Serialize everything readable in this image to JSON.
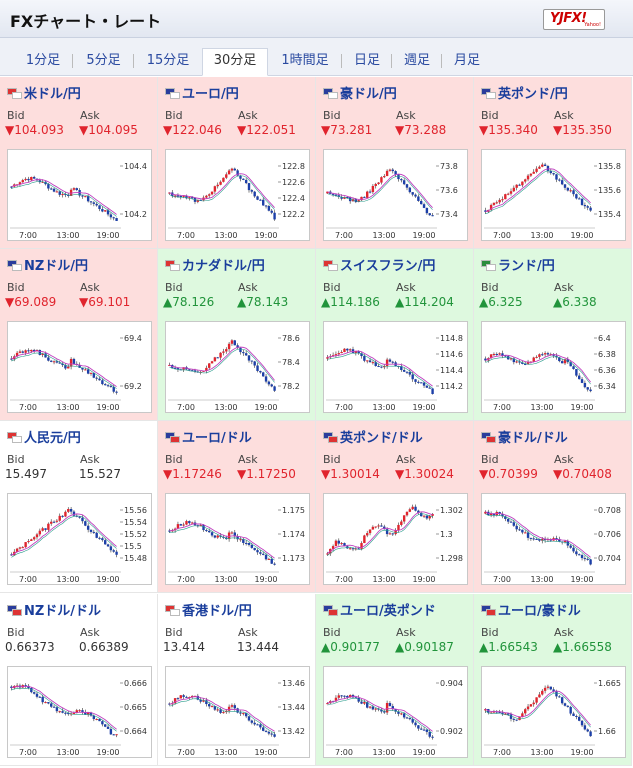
{
  "header": {
    "title": "FXチャート・レート",
    "logo_text": "YJFX!",
    "logo_sub": "Yahoo!"
  },
  "tabs": [
    {
      "label": "1分足",
      "active": false
    },
    {
      "label": "5分足",
      "active": false
    },
    {
      "label": "15分足",
      "active": false
    },
    {
      "label": "30分足",
      "active": true
    },
    {
      "label": "1時間足",
      "active": false
    },
    {
      "label": "日足",
      "active": false
    },
    {
      "label": "週足",
      "active": false
    },
    {
      "label": "月足",
      "active": false
    }
  ],
  "labels": {
    "bid": "Bid",
    "ask": "Ask"
  },
  "colors": {
    "down_bg": "#fddedd",
    "up_bg": "#def9df",
    "down_text": "#e0242d",
    "up_text": "#21943b",
    "link": "#1a3e9c"
  },
  "x_ticks": [
    "7:00",
    "13:00",
    "19:00"
  ],
  "pairs": [
    {
      "name": "米ドル/円",
      "trend": "down",
      "bid": "▼104.093",
      "ask": "▼104.095",
      "ticks": [
        "104.4",
        "104.2"
      ],
      "flag_colors": [
        "#d33",
        "#fff"
      ],
      "path": "flat_then_down"
    },
    {
      "name": "ユーロ/円",
      "trend": "down",
      "bid": "▼122.046",
      "ask": "▼122.051",
      "ticks": [
        "122.8",
        "122.6",
        "122.4",
        "122.2"
      ],
      "flag_colors": [
        "#2a3d9c",
        "#fff"
      ],
      "path": "dip_rise_drop"
    },
    {
      "name": "豪ドル/円",
      "trend": "down",
      "bid": "▼73.281",
      "ask": "▼73.288",
      "ticks": [
        "73.8",
        "73.6",
        "73.4"
      ],
      "flag_colors": [
        "#2a3d9c",
        "#fff"
      ],
      "path": "dip_rise_drop"
    },
    {
      "name": "英ポンド/円",
      "trend": "down",
      "bid": "▼135.340",
      "ask": "▼135.350",
      "ticks": [
        "135.8",
        "135.6",
        "135.4"
      ],
      "flag_colors": [
        "#2a3d9c",
        "#fff"
      ],
      "path": "rise_peak_drop"
    },
    {
      "name": "NZドル/円",
      "trend": "down",
      "bid": "▼69.089",
      "ask": "▼69.101",
      "ticks": [
        "69.4",
        "69.2"
      ],
      "flag_colors": [
        "#2a3d9c",
        "#fff"
      ],
      "path": "flat_then_down"
    },
    {
      "name": "カナダドル/円",
      "trend": "up",
      "bid": "▲78.126",
      "ask": "▲78.143",
      "ticks": [
        "78.6",
        "78.4",
        "78.2"
      ],
      "flag_colors": [
        "#d33",
        "#fff"
      ],
      "path": "dip_rise_drop"
    },
    {
      "name": "スイスフラン/円",
      "trend": "up",
      "bid": "▲114.186",
      "ask": "▲114.204",
      "ticks": [
        "114.8",
        "114.6",
        "114.4",
        "114.2"
      ],
      "flag_colors": [
        "#d33",
        "#fff"
      ],
      "path": "flat_then_down"
    },
    {
      "name": "ランド/円",
      "trend": "up",
      "bid": "▲6.325",
      "ask": "▲6.338",
      "ticks": [
        "6.4",
        "6.38",
        "6.36",
        "6.34"
      ],
      "flag_colors": [
        "#2a8c3c",
        "#fff"
      ],
      "path": "spiky_drop"
    },
    {
      "name": "人民元/円",
      "trend": "neutral",
      "bid": "15.497",
      "ask": "15.527",
      "ticks": [
        "15.56",
        "15.54",
        "15.52",
        "15.5",
        "15.48"
      ],
      "flag_colors": [
        "#d33",
        "#fff"
      ],
      "path": "rise_peak_drop"
    },
    {
      "name": "ユーロ/ドル",
      "trend": "down",
      "bid": "▼1.17246",
      "ask": "▼1.17250",
      "ticks": [
        "1.175",
        "1.174",
        "1.173"
      ],
      "flag_colors": [
        "#2a3d9c",
        "#d33"
      ],
      "path": "flat_then_down"
    },
    {
      "name": "英ポンド/ドル",
      "trend": "down",
      "bid": "▼1.30014",
      "ask": "▼1.30024",
      "ticks": [
        "1.302",
        "1.3",
        "1.298"
      ],
      "flag_colors": [
        "#2a3d9c",
        "#d33"
      ],
      "path": "rise_volatile"
    },
    {
      "name": "豪ドル/ドル",
      "trend": "down",
      "bid": "▼0.70399",
      "ask": "▼0.70408",
      "ticks": [
        "0.708",
        "0.706",
        "0.704"
      ],
      "flag_colors": [
        "#2a3d9c",
        "#d33"
      ],
      "path": "decline"
    },
    {
      "name": "NZドル/ドル",
      "trend": "neutral",
      "bid": "0.66373",
      "ask": "0.66389",
      "ticks": [
        "0.666",
        "0.665",
        "0.664"
      ],
      "flag_colors": [
        "#2a3d9c",
        "#d33"
      ],
      "path": "decline"
    },
    {
      "name": "香港ドル/円",
      "trend": "neutral",
      "bid": "13.414",
      "ask": "13.444",
      "ticks": [
        "13.46",
        "13.44",
        "13.42"
      ],
      "flag_colors": [
        "#d33",
        "#fff"
      ],
      "path": "flat_then_down"
    },
    {
      "name": "ユーロ/英ポンド",
      "trend": "up",
      "bid": "▲0.90177",
      "ask": "▲0.90187",
      "ticks": [
        "0.904",
        "0.902"
      ],
      "flag_colors": [
        "#2a3d9c",
        "#d33"
      ],
      "path": "flat_then_down"
    },
    {
      "name": "ユーロ/豪ドル",
      "trend": "up",
      "bid": "▲1.66543",
      "ask": "▲1.66558",
      "ticks": [
        "1.665",
        "1.66"
      ],
      "flag_colors": [
        "#2a3d9c",
        "#d33"
      ],
      "path": "dip_rise_drop"
    }
  ]
}
